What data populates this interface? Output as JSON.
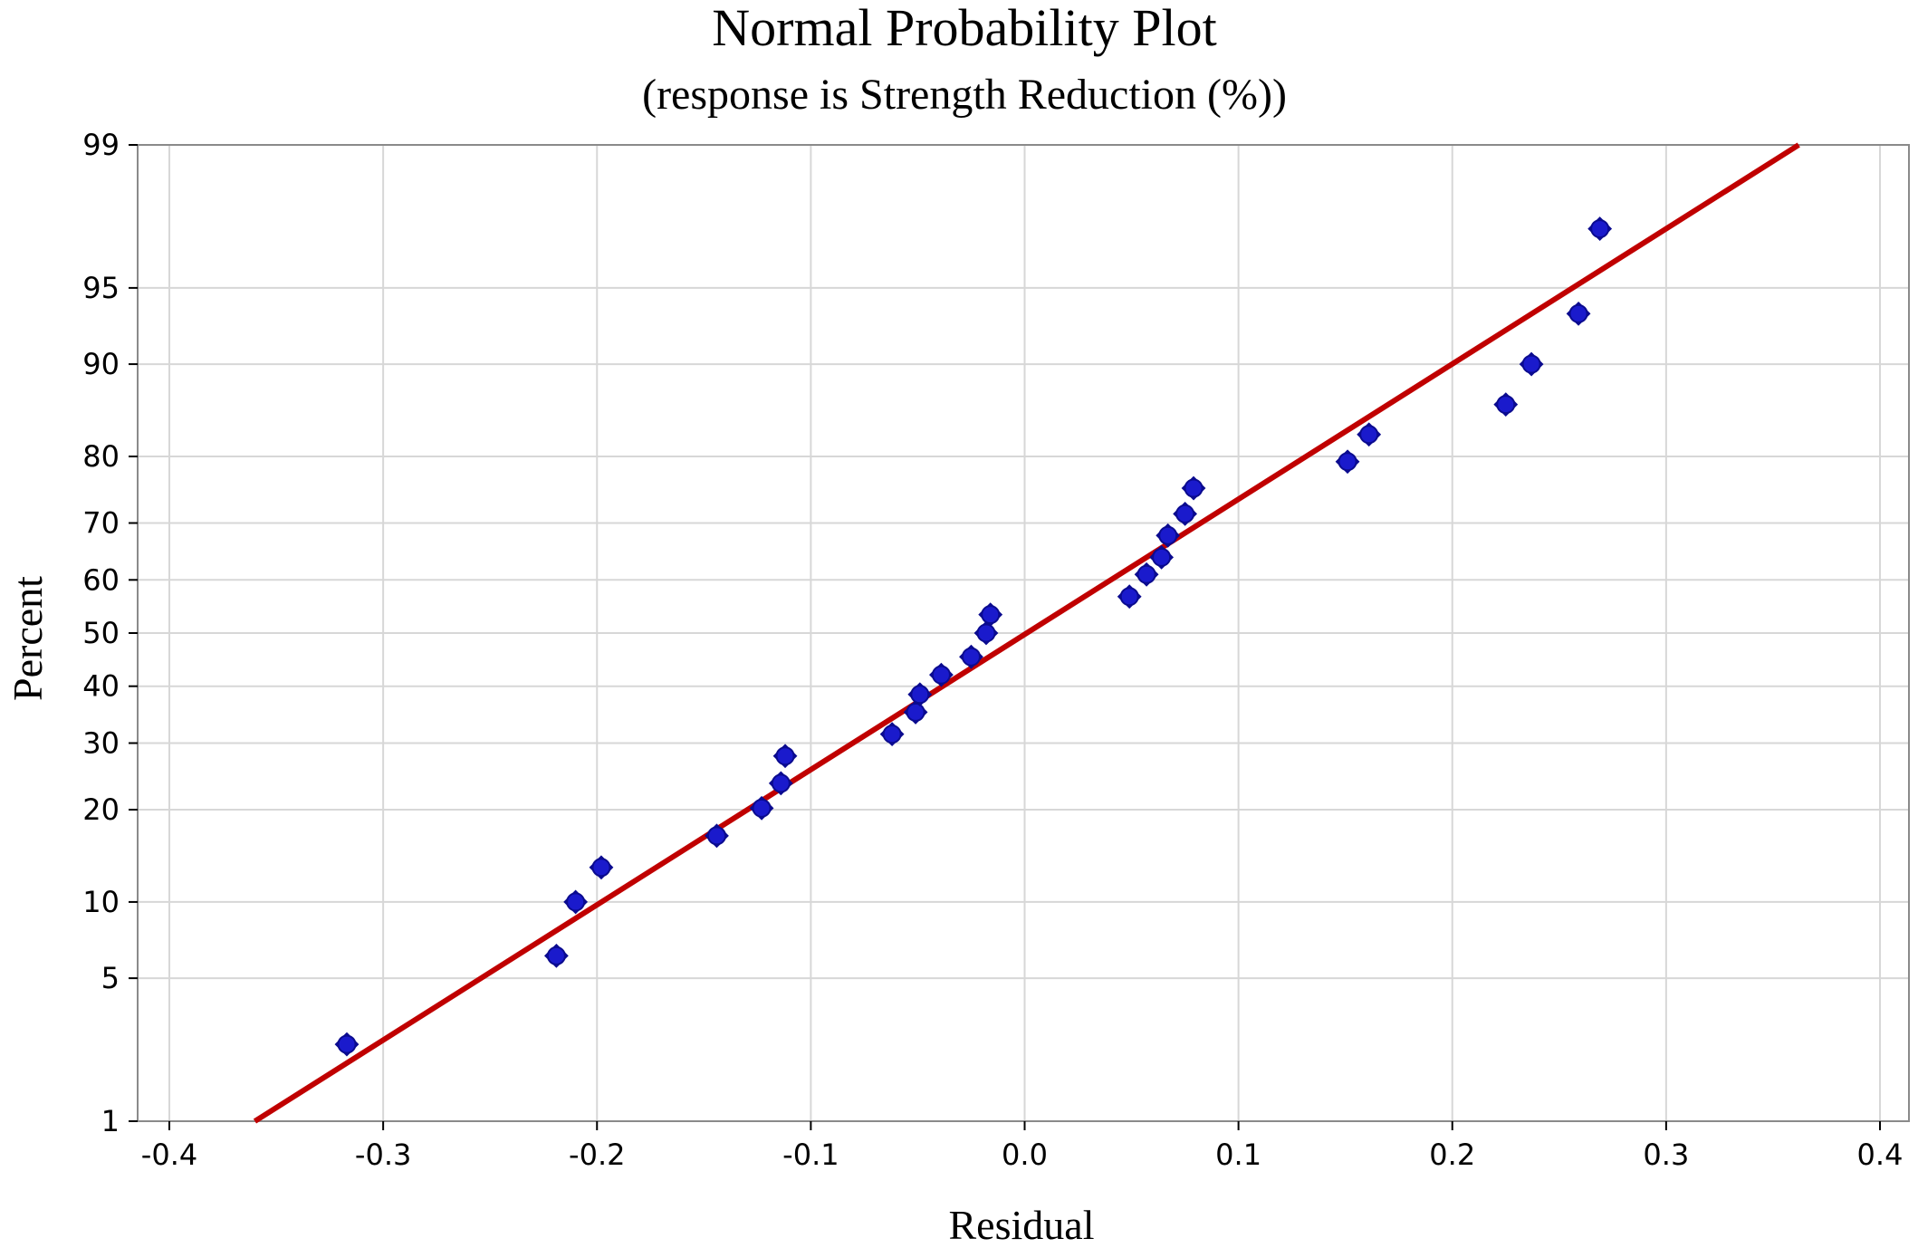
{
  "chart_data": {
    "type": "scatter",
    "title": "Normal Probability Plot",
    "subtitle": "(response is Strength Reduction (%))",
    "xlabel": "Residual",
    "ylabel": "Percent",
    "xlim": [
      -0.4,
      0.4
    ],
    "ylim": [
      1,
      99
    ],
    "y_scale": "normal-probability",
    "grid": true,
    "x_ticks": [
      -0.4,
      -0.3,
      -0.2,
      -0.1,
      0.0,
      0.1,
      0.2,
      0.3,
      0.4
    ],
    "x_tick_labels": [
      "-0.4",
      "-0.3",
      "-0.2",
      "-0.1",
      "0.0",
      "0.1",
      "0.2",
      "0.3",
      "0.4"
    ],
    "y_ticks": [
      1,
      5,
      10,
      20,
      30,
      40,
      50,
      60,
      70,
      80,
      90,
      95,
      99
    ],
    "y_tick_labels": [
      "1",
      "5",
      "10",
      "20",
      "30",
      "40",
      "50",
      "60",
      "70",
      "80",
      "90",
      "95",
      "99"
    ],
    "fit_line": {
      "x": [
        -0.36,
        0.362
      ],
      "y": [
        1,
        99
      ],
      "color": "#c00000"
    },
    "points": [
      {
        "x": -0.317,
        "y": 2.5
      },
      {
        "x": -0.219,
        "y": 6.2
      },
      {
        "x": -0.21,
        "y": 10.0
      },
      {
        "x": -0.198,
        "y": 13.2
      },
      {
        "x": -0.144,
        "y": 16.7
      },
      {
        "x": -0.123,
        "y": 20.2
      },
      {
        "x": -0.114,
        "y": 23.7
      },
      {
        "x": -0.112,
        "y": 27.9
      },
      {
        "x": -0.062,
        "y": 31.5
      },
      {
        "x": -0.051,
        "y": 35.3
      },
      {
        "x": -0.049,
        "y": 38.5
      },
      {
        "x": -0.039,
        "y": 42.1
      },
      {
        "x": -0.025,
        "y": 45.5
      },
      {
        "x": -0.018,
        "y": 50.0
      },
      {
        "x": -0.016,
        "y": 53.5
      },
      {
        "x": 0.049,
        "y": 56.9
      },
      {
        "x": 0.057,
        "y": 61.0
      },
      {
        "x": 0.064,
        "y": 64.1
      },
      {
        "x": 0.067,
        "y": 67.9
      },
      {
        "x": 0.075,
        "y": 71.5
      },
      {
        "x": 0.079,
        "y": 75.5
      },
      {
        "x": 0.151,
        "y": 79.3
      },
      {
        "x": 0.161,
        "y": 82.8
      },
      {
        "x": 0.225,
        "y": 86.2
      },
      {
        "x": 0.237,
        "y": 90.0
      },
      {
        "x": 0.259,
        "y": 93.6
      },
      {
        "x": 0.269,
        "y": 97.3
      }
    ],
    "point_color": "#1a1acc"
  }
}
